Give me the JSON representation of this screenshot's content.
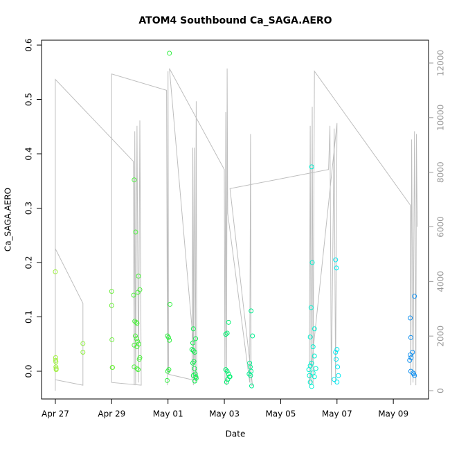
{
  "chart_data": {
    "type": "scatter",
    "title": "ATOM4 Southbound Ca_SAGA.AERO",
    "x_label": "Date",
    "y_label": "Ca_SAGA.AERO",
    "xlim": [
      -0.49,
      13.25
    ],
    "xticks": [
      {
        "value": 0,
        "label": "Apr 27"
      },
      {
        "value": 2,
        "label": "Apr 29"
      },
      {
        "value": 4,
        "label": "May 01"
      },
      {
        "value": 6,
        "label": "May 03"
      },
      {
        "value": 8,
        "label": "May 05"
      },
      {
        "value": 10,
        "label": "May 07"
      },
      {
        "value": 12,
        "label": "May 09"
      }
    ],
    "ylim": [
      -0.051,
      0.609
    ],
    "yticks": [
      {
        "value": 0,
        "label": "0.0"
      },
      0.1,
      0.2,
      0.3,
      0.4,
      0.5,
      0.6
    ],
    "y2lim": [
      -304,
      12837
    ],
    "y2ticks": [
      0,
      2000,
      4000,
      6000,
      8000,
      10000,
      12000
    ],
    "series": [
      {
        "type": "line",
        "axis": "y2",
        "color": "#bebebe",
        "x": [
          0,
          0,
          0.98,
          0.98,
          0,
          0,
          2.77,
          2.8,
          2.82,
          2.85,
          2.9,
          2.95,
          3.0,
          3.05,
          2.0,
          2.0,
          3.95,
          3.98,
          4.0,
          4.02,
          4.85,
          4.88,
          4.9,
          4.93,
          4.97,
          5.0,
          5.02,
          4.05,
          6.0,
          6.02,
          6.05,
          6.08,
          6.1,
          6.12,
          6.9,
          6.93,
          6.95,
          7.0,
          6.2,
          9.7,
          9.75,
          9.8,
          9.9,
          9.95,
          10.0,
          9.02,
          9.05,
          9.08,
          9.12,
          9.15,
          9.2,
          12.6,
          12.62,
          12.65,
          12.7,
          12.75,
          12.8,
          12.82,
          12.85
        ],
        "values": [
          0,
          5200,
          3200,
          200,
          400,
          11400,
          8400,
          200,
          9500,
          200,
          9700,
          300,
          9900,
          200,
          300,
          11600,
          11000,
          200,
          11700,
          600,
          400,
          8900,
          200,
          8900,
          300,
          10600,
          300,
          11800,
          8100,
          300,
          10200,
          200,
          11800,
          6500,
          300,
          9400,
          200,
          200,
          7400,
          8100,
          9700,
          200,
          9600,
          300,
          9800,
          200,
          9700,
          300,
          10400,
          200,
          11700,
          6800,
          200,
          9200,
          300,
          9500,
          200,
          9400,
          6000
        ]
      },
      {
        "color": "#a0f040",
        "x": [
          0,
          0.01,
          0.01,
          0.02,
          0.02,
          0.03,
          0.03
        ],
        "values": [
          0.183,
          0.025,
          0.02,
          0.017,
          0.008,
          0.005,
          0.003
        ]
      },
      {
        "color": "#90f040",
        "x": [
          0.98,
          0.98
        ],
        "values": [
          0.051,
          0.035
        ]
      },
      {
        "color": "#70f040",
        "x": [
          2.0,
          2.0,
          2.01,
          2.02,
          2.03
        ],
        "values": [
          0.147,
          0.121,
          0.058,
          0.007,
          0.007
        ]
      },
      {
        "color": "#50f040",
        "x": [
          2.8,
          2.85,
          2.95,
          3.0,
          2.78,
          2.93,
          2.82,
          2.87,
          2.9,
          2.84,
          2.88,
          2.92,
          2.96,
          2.8,
          2.9,
          3.0,
          2.98,
          2.8,
          2.9,
          2.94
        ],
        "values": [
          0.352,
          0.256,
          0.175,
          0.15,
          0.14,
          0.145,
          0.092,
          0.09,
          0.088,
          0.065,
          0.06,
          0.055,
          0.05,
          0.048,
          0.045,
          0.025,
          0.022,
          0.008,
          0.005,
          0.003
        ]
      },
      {
        "color": "#30f040",
        "x": [
          4.05,
          4.07,
          3.98,
          4.02,
          4.05,
          4.03,
          3.99,
          3.97
        ],
        "values": [
          0.585,
          0.123,
          0.065,
          0.062,
          0.057,
          0.003,
          0.0,
          -0.017
        ]
      },
      {
        "color": "#10f050",
        "x": [
          4.9,
          4.98,
          4.88,
          4.85,
          4.9,
          4.95,
          4.92,
          4.88,
          4.94,
          4.97,
          4.9,
          4.99,
          5.0,
          4.95
        ],
        "values": [
          0.078,
          0.06,
          0.052,
          0.04,
          0.038,
          0.035,
          0.018,
          0.015,
          0.005,
          -0.005,
          -0.008,
          -0.01,
          -0.013,
          -0.018
        ]
      },
      {
        "color": "#00f070",
        "x": [
          6.15,
          6.1,
          6.05,
          6.05,
          6.1,
          6.15,
          6.2,
          6.12,
          6.08,
          6.18
        ],
        "values": [
          0.09,
          0.07,
          0.068,
          0.003,
          0.0,
          -0.005,
          -0.01,
          -0.015,
          -0.02,
          -0.01
        ]
      },
      {
        "color": "#00f090",
        "x": [
          6.95,
          7.0,
          6.9,
          6.92,
          6.95,
          6.88,
          6.93,
          6.97
        ],
        "values": [
          0.111,
          0.065,
          0.015,
          0.008,
          0.0,
          -0.005,
          -0.008,
          -0.027
        ]
      },
      {
        "color": "#00f0d0",
        "x": [
          9.1,
          9.12,
          9.08,
          9.2,
          9.05,
          9.15,
          9.2,
          9.1,
          9.05,
          9.25,
          9.0,
          9.15,
          9.02,
          9.2,
          9.05,
          9.1
        ],
        "values": [
          0.376,
          0.2,
          0.117,
          0.078,
          0.063,
          0.045,
          0.028,
          0.015,
          0.01,
          0.005,
          0.003,
          -0.003,
          -0.008,
          -0.01,
          -0.02,
          -0.028
        ]
      },
      {
        "color": "#00e8f0",
        "x": [
          9.95,
          9.98,
          10.0,
          9.95,
          9.97,
          10.02,
          10.05,
          9.9,
          10.0
        ],
        "values": [
          0.205,
          0.19,
          0.04,
          0.035,
          0.022,
          0.008,
          -0.008,
          -0.015,
          -0.02
        ]
      },
      {
        "color": "#1090f0",
        "x": [
          12.75,
          12.6,
          12.62,
          12.68,
          12.6,
          12.63,
          12.58,
          12.62,
          12.7,
          12.72,
          12.75
        ],
        "values": [
          0.138,
          0.098,
          0.062,
          0.035,
          0.03,
          0.025,
          0.02,
          0.0,
          -0.003,
          -0.005,
          -0.008
        ]
      }
    ]
  }
}
